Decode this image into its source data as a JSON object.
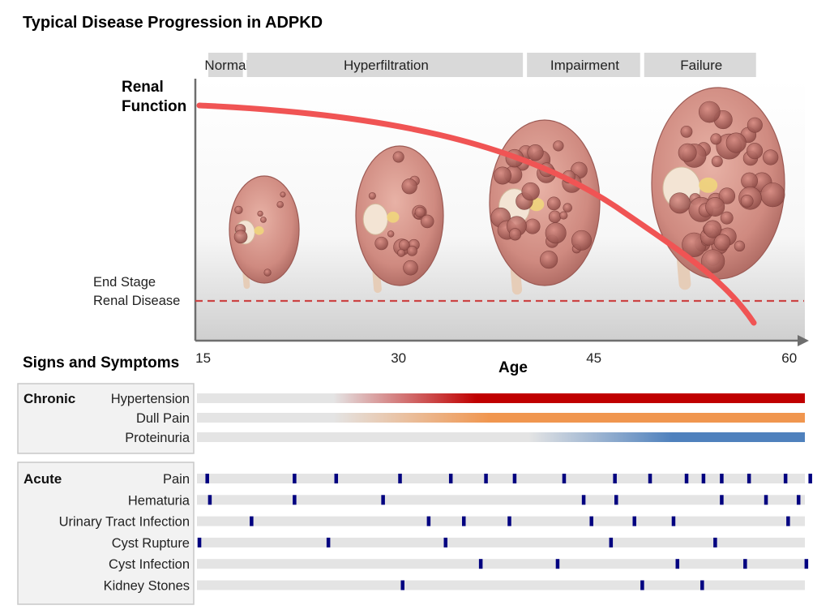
{
  "title": "Typical Disease Progression in ADPKD",
  "stages": [
    {
      "label": "Normal",
      "from": 12,
      "to": 18.3
    },
    {
      "label": "Hyperfiltration",
      "from": 18.3,
      "to": 39.8
    },
    {
      "label": "Impairment",
      "from": 39.8,
      "to": 48.8
    },
    {
      "label": "Failure",
      "from": 48.8,
      "to": 57.7
    }
  ],
  "y_axis_label_line1": "Renal",
  "y_axis_label_line2": "Function",
  "x_axis_label": "Age",
  "x_ticks": [
    15,
    30,
    45,
    60
  ],
  "x_range": [
    14.4,
    61.2
  ],
  "esrd_label_line1": "End Stage",
  "esrd_label_line2": "Renal Disease",
  "colors": {
    "curve": "#f05454",
    "esrd_line": "#cc4444",
    "hypertension": "#c00000",
    "dull_pain": "#f0964f",
    "proteinuria": "#4f81bd",
    "event": "#000080",
    "track": "#e4e4e4",
    "stage_box": "#d9d9d9"
  },
  "signs_title": "Signs and Symptoms",
  "chronic": {
    "label": "Chronic",
    "items": [
      {
        "name": "Hypertension",
        "onset": 25,
        "full": 36,
        "color": "#c00000"
      },
      {
        "name": "Dull Pain",
        "onset": 25,
        "full": 37,
        "color": "#f0964f"
      },
      {
        "name": "Proteinuria",
        "onset": 40,
        "full": 51,
        "color": "#4f81bd"
      }
    ]
  },
  "acute": {
    "label": "Acute",
    "items": [
      {
        "name": "Pain",
        "events": [
          15.3,
          22,
          25.2,
          30.1,
          34,
          36.7,
          38.9,
          42.7,
          46.6,
          49.3,
          52.1,
          53.4,
          54.8,
          56.9,
          59.7,
          61.6
        ]
      },
      {
        "name": "Hematuria",
        "events": [
          15.5,
          22,
          28.8,
          44.2,
          46.7,
          54.8,
          58.2,
          60.7
        ]
      },
      {
        "name": "Urinary Tract Infection",
        "events": [
          18.7,
          32.3,
          35,
          38.5,
          44.8,
          48.1,
          51.1,
          59.9
        ]
      },
      {
        "name": "Cyst Rupture",
        "events": [
          14.7,
          24.6,
          33.6,
          46.3,
          54.3
        ]
      },
      {
        "name": "Cyst Infection",
        "events": [
          36.3,
          42.2,
          51.4,
          56.6,
          61.3
        ]
      },
      {
        "name": "Kidney Stones",
        "events": [
          30.3,
          48.7,
          53.3
        ]
      }
    ]
  }
}
